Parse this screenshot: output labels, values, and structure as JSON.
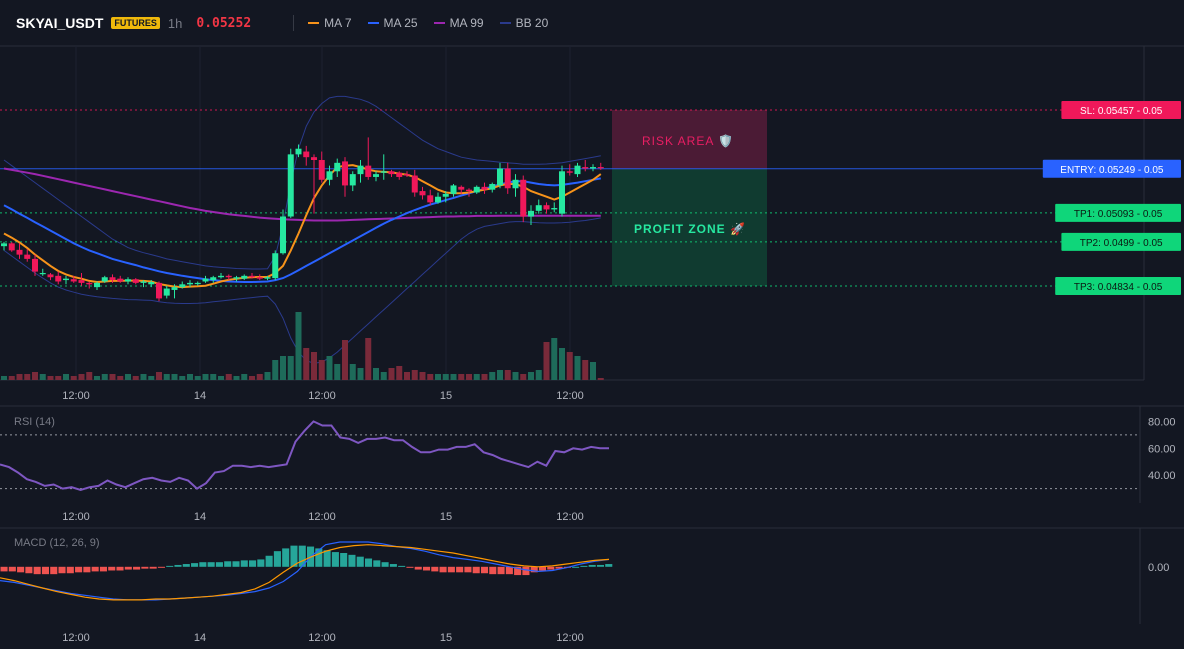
{
  "header": {
    "symbol": "SKYAI_USDT",
    "badge": "FUTURES",
    "timeframe": "1h",
    "last_price": "0.05252",
    "legend": [
      {
        "label": "MA 7",
        "color": "#f7931a"
      },
      {
        "label": "MA 25",
        "color": "#2962ff"
      },
      {
        "label": "MA 99",
        "color": "#9c27b0"
      },
      {
        "label": "BB 20",
        "color": "#2a3a8c"
      }
    ]
  },
  "levels": [
    {
      "label": "SL: 0.05457 - 0.05",
      "price": 0.05457,
      "color": "#f0185a",
      "style": "dotted"
    },
    {
      "label": "ENTRY: 0.05249 - 0.05",
      "price": 0.05249,
      "color": "#2962ff",
      "style": "solid"
    },
    {
      "label": "TP1: 0.05093 - 0.05",
      "price": 0.05093,
      "color": "#0fd67a",
      "style": "dotted"
    },
    {
      "label": "TP2: 0.0499 - 0.05",
      "price": 0.0499,
      "color": "#0fd67a",
      "style": "dotted"
    },
    {
      "label": "TP3: 0.04834 - 0.05",
      "price": 0.04834,
      "color": "#0fd67a",
      "style": "dotted"
    }
  ],
  "zones": {
    "risk_label": "RISK AREA 🛡️",
    "profit_label": "PROFIT ZONE 🚀"
  },
  "x_ticks": [
    "12:00",
    "14",
    "12:00",
    "15",
    "12:00"
  ],
  "colors": {
    "up": "#26e8a0",
    "down": "#f0185a",
    "background": "#131722"
  },
  "chart_data": [
    {
      "type": "candlestick",
      "title": "SKYAI_USDT 1h",
      "candles": [
        [
          0.04975,
          0.0499,
          0.0496,
          0.04985
        ],
        [
          0.04985,
          0.0499,
          0.04955,
          0.0496
        ],
        [
          0.04962,
          0.04985,
          0.0493,
          0.04945
        ],
        [
          0.04945,
          0.04965,
          0.0492,
          0.0493
        ],
        [
          0.0493,
          0.04945,
          0.0487,
          0.04885
        ],
        [
          0.0488,
          0.04895,
          0.0487,
          0.0488
        ],
        [
          0.04875,
          0.0488,
          0.04855,
          0.04865
        ],
        [
          0.0487,
          0.04885,
          0.0484,
          0.0485
        ],
        [
          0.04855,
          0.0487,
          0.0484,
          0.0486
        ],
        [
          0.04858,
          0.0487,
          0.04845,
          0.0485
        ],
        [
          0.04855,
          0.0488,
          0.04835,
          0.04845
        ],
        [
          0.04845,
          0.0485,
          0.04825,
          0.0484
        ],
        [
          0.0483,
          0.0485,
          0.0482,
          0.04845
        ],
        [
          0.0485,
          0.0487,
          0.04845,
          0.04865
        ],
        [
          0.04865,
          0.04875,
          0.04845,
          0.04855
        ],
        [
          0.0486,
          0.0487,
          0.04845,
          0.0485
        ],
        [
          0.0485,
          0.04865,
          0.0484,
          0.04858
        ],
        [
          0.04858,
          0.04862,
          0.0484,
          0.04845
        ],
        [
          0.04845,
          0.04855,
          0.0483,
          0.0485
        ],
        [
          0.0484,
          0.04855,
          0.0483,
          0.04848
        ],
        [
          0.04845,
          0.0485,
          0.0478,
          0.0479
        ],
        [
          0.048,
          0.04835,
          0.0479,
          0.04825
        ],
        [
          0.0482,
          0.0484,
          0.0479,
          0.0483
        ],
        [
          0.0483,
          0.0485,
          0.04825,
          0.0484
        ],
        [
          0.0484,
          0.04855,
          0.0483,
          0.04845
        ],
        [
          0.04845,
          0.0485,
          0.04835,
          0.04845
        ],
        [
          0.0485,
          0.0487,
          0.04845,
          0.0486
        ],
        [
          0.04855,
          0.0487,
          0.04845,
          0.04865
        ],
        [
          0.04865,
          0.0488,
          0.0486,
          0.0487
        ],
        [
          0.0487,
          0.04875,
          0.04855,
          0.04865
        ],
        [
          0.0486,
          0.0487,
          0.0485,
          0.04865
        ],
        [
          0.0486,
          0.04875,
          0.04855,
          0.0487
        ],
        [
          0.0487,
          0.0488,
          0.0486,
          0.04865
        ],
        [
          0.04865,
          0.04875,
          0.04855,
          0.0486
        ],
        [
          0.0486,
          0.0487,
          0.04855,
          0.04865
        ],
        [
          0.04862,
          0.0496,
          0.04855,
          0.0495
        ],
        [
          0.0495,
          0.05105,
          0.04945,
          0.0508
        ],
        [
          0.0508,
          0.0532,
          0.05075,
          0.053
        ],
        [
          0.053,
          0.05335,
          0.0529,
          0.0532
        ],
        [
          0.0531,
          0.0533,
          0.0526,
          0.0529
        ],
        [
          0.0529,
          0.053,
          0.0509,
          0.0528
        ],
        [
          0.0528,
          0.0531,
          0.052,
          0.0521
        ],
        [
          0.0521,
          0.0526,
          0.0519,
          0.0524
        ],
        [
          0.0524,
          0.05285,
          0.0522,
          0.0527
        ],
        [
          0.05275,
          0.0529,
          0.0515,
          0.0519
        ],
        [
          0.0519,
          0.0524,
          0.0517,
          0.0523
        ],
        [
          0.0523,
          0.0528,
          0.052,
          0.0526
        ],
        [
          0.0526,
          0.0536,
          0.0521,
          0.0522
        ],
        [
          0.0522,
          0.0524,
          0.05205,
          0.0523
        ],
        [
          0.05235,
          0.053,
          0.0521,
          0.0524
        ],
        [
          0.0524,
          0.05245,
          0.0522,
          0.0523
        ],
        [
          0.05235,
          0.0524,
          0.0521,
          0.0522
        ],
        [
          0.0523,
          0.0524,
          0.0522,
          0.05225
        ],
        [
          0.05225,
          0.05245,
          0.0515,
          0.05165
        ],
        [
          0.0517,
          0.05185,
          0.0514,
          0.05155
        ],
        [
          0.05155,
          0.05175,
          0.0512,
          0.0513
        ],
        [
          0.0513,
          0.05165,
          0.05125,
          0.0515
        ],
        [
          0.0515,
          0.0517,
          0.0513,
          0.0516
        ],
        [
          0.0516,
          0.05195,
          0.0515,
          0.0519
        ],
        [
          0.05185,
          0.0519,
          0.0516,
          0.05175
        ],
        [
          0.05175,
          0.0518,
          0.0515,
          0.0517
        ],
        [
          0.05165,
          0.0519,
          0.0516,
          0.05185
        ],
        [
          0.05185,
          0.052,
          0.0516,
          0.05175
        ],
        [
          0.05175,
          0.052,
          0.05165,
          0.05195
        ],
        [
          0.0519,
          0.0527,
          0.0518,
          0.0525
        ],
        [
          0.0525,
          0.0527,
          0.0516,
          0.0518
        ],
        [
          0.0518,
          0.0523,
          0.0515,
          0.0521
        ],
        [
          0.0521,
          0.05225,
          0.0506,
          0.0508
        ],
        [
          0.0508,
          0.0512,
          0.0505,
          0.051
        ],
        [
          0.051,
          0.0514,
          0.0509,
          0.0512
        ],
        [
          0.0512,
          0.0513,
          0.0509,
          0.05105
        ],
        [
          0.05105,
          0.0513,
          0.05095,
          0.0511
        ],
        [
          0.0509,
          0.0526,
          0.0508,
          0.0524
        ],
        [
          0.0524,
          0.05265,
          0.05225,
          0.05235
        ],
        [
          0.0523,
          0.0527,
          0.0522,
          0.0526
        ],
        [
          0.05255,
          0.0528,
          0.0524,
          0.0525
        ],
        [
          0.0525,
          0.05265,
          0.0524,
          0.05255
        ],
        [
          0.05255,
          0.0527,
          0.05245,
          0.05252
        ]
      ],
      "ma7": [
        0.0502,
        0.05005,
        0.04988,
        0.04968,
        0.04945,
        0.04925,
        0.04905,
        0.04887,
        0.04875,
        0.04866,
        0.0486,
        0.04852,
        0.04848,
        0.0485,
        0.04852,
        0.04852,
        0.04853,
        0.04853,
        0.04852,
        0.0485,
        0.04841,
        0.04836,
        0.04832,
        0.0483,
        0.04832,
        0.04833,
        0.04835,
        0.04842,
        0.0485,
        0.04856,
        0.0486,
        0.04863,
        0.04865,
        0.04866,
        0.04866,
        0.0488,
        0.04905,
        0.0496,
        0.0502,
        0.05085,
        0.05145,
        0.0519,
        0.05225,
        0.05255,
        0.0526,
        0.05262,
        0.05255,
        0.05246,
        0.0524,
        0.05238,
        0.05236,
        0.05232,
        0.05228,
        0.0522,
        0.05205,
        0.0519,
        0.05175,
        0.05165,
        0.05162,
        0.05162,
        0.05165,
        0.0517,
        0.05175,
        0.0518,
        0.0519,
        0.05195,
        0.05195,
        0.05185,
        0.0517,
        0.0516,
        0.0515,
        0.0514,
        0.0515,
        0.05165,
        0.0518,
        0.05195,
        0.0521,
        0.0523
      ],
      "ma25": [
        0.0512,
        0.05105,
        0.0509,
        0.05075,
        0.0506,
        0.05045,
        0.0503,
        0.05015,
        0.05,
        0.04985,
        0.04972,
        0.0496,
        0.0495,
        0.0494,
        0.0493,
        0.04922,
        0.04915,
        0.04908,
        0.049,
        0.04893,
        0.04886,
        0.0488,
        0.04875,
        0.0487,
        0.04866,
        0.04862,
        0.04858,
        0.04855,
        0.04852,
        0.0485,
        0.04849,
        0.04848,
        0.04848,
        0.04849,
        0.0485,
        0.04855,
        0.04862,
        0.04875,
        0.0489,
        0.04905,
        0.0492,
        0.04935,
        0.0495,
        0.04965,
        0.0498,
        0.04995,
        0.0501,
        0.05025,
        0.0504,
        0.05055,
        0.05068,
        0.0508,
        0.05092,
        0.05103,
        0.05113,
        0.05122,
        0.0513,
        0.05138,
        0.05146,
        0.05154,
        0.05162,
        0.0517,
        0.05178,
        0.05186,
        0.05194,
        0.052,
        0.05205,
        0.05205,
        0.052,
        0.05195,
        0.05192,
        0.0519,
        0.05192,
        0.05196,
        0.052,
        0.05205,
        0.0521,
        0.05215
      ],
      "ma99": [
        0.0525,
        0.05245,
        0.0524,
        0.05235,
        0.0523,
        0.05224,
        0.05218,
        0.05212,
        0.05206,
        0.052,
        0.05194,
        0.05188,
        0.05182,
        0.05176,
        0.0517,
        0.05164,
        0.05158,
        0.05152,
        0.05146,
        0.0514,
        0.05134,
        0.05128,
        0.05122,
        0.05116,
        0.0511,
        0.05105,
        0.051,
        0.05096,
        0.05092,
        0.05088,
        0.05085,
        0.05082,
        0.05079,
        0.05076,
        0.05074,
        0.05072,
        0.0507,
        0.05069,
        0.05068,
        0.05067,
        0.05066,
        0.05066,
        0.05066,
        0.05066,
        0.05067,
        0.05068,
        0.05069,
        0.0507,
        0.05071,
        0.05072,
        0.05073,
        0.05074,
        0.05075,
        0.05076,
        0.05077,
        0.05078,
        0.05079,
        0.0508,
        0.0508,
        0.05081,
        0.05081,
        0.05082,
        0.05082,
        0.05082,
        0.05083,
        0.05083,
        0.05083,
        0.05083,
        0.05083,
        0.05083,
        0.05083,
        0.05083,
        0.05083,
        0.05083,
        0.05083,
        0.05083,
        0.05083,
        0.05083
      ],
      "bb_upper": [
        0.0528,
        0.0526,
        0.0524,
        0.0522,
        0.052,
        0.0518,
        0.0516,
        0.0514,
        0.0512,
        0.051,
        0.0508,
        0.0506,
        0.0504,
        0.0502,
        0.05,
        0.04985,
        0.0497,
        0.0496,
        0.04952,
        0.04945,
        0.04938,
        0.0493,
        0.04925,
        0.0492,
        0.04915,
        0.0491,
        0.04905,
        0.04902,
        0.049,
        0.04898,
        0.04896,
        0.04895,
        0.04894,
        0.04894,
        0.04895,
        0.0494,
        0.0505,
        0.052,
        0.0532,
        0.054,
        0.0545,
        0.0548,
        0.055,
        0.05505,
        0.05505,
        0.055,
        0.05495,
        0.05485,
        0.0547,
        0.0545,
        0.0543,
        0.0541,
        0.0539,
        0.0537,
        0.0535,
        0.05335,
        0.0532,
        0.0531,
        0.053,
        0.0529,
        0.05285,
        0.0528,
        0.05278,
        0.05275,
        0.05272,
        0.0527,
        0.05268,
        0.05265,
        0.05265,
        0.05265,
        0.05266,
        0.05268,
        0.0527,
        0.05275,
        0.0528,
        0.05285,
        0.0529,
        0.05295
      ],
      "bb_lower": [
        0.0496,
        0.0494,
        0.0492,
        0.049,
        0.0488,
        0.04862,
        0.04845,
        0.0483,
        0.0482,
        0.04812,
        0.04805,
        0.048,
        0.04796,
        0.04793,
        0.0479,
        0.04788,
        0.04786,
        0.04785,
        0.04784,
        0.04783,
        0.04778,
        0.04775,
        0.04773,
        0.04772,
        0.04772,
        0.04773,
        0.04775,
        0.04778,
        0.04781,
        0.04784,
        0.04787,
        0.0479,
        0.04793,
        0.04796,
        0.04798,
        0.0477,
        0.0472,
        0.0465,
        0.046,
        0.0457,
        0.0456,
        0.04565,
        0.0458,
        0.046,
        0.04625,
        0.0465,
        0.04675,
        0.047,
        0.04725,
        0.0475,
        0.04775,
        0.048,
        0.04825,
        0.0485,
        0.04875,
        0.049,
        0.04925,
        0.0495,
        0.04975,
        0.05,
        0.0502,
        0.05035,
        0.05045,
        0.0505,
        0.05055,
        0.0506,
        0.05062,
        0.05062,
        0.0506,
        0.05058,
        0.05057,
        0.05057,
        0.05058,
        0.0506,
        0.05063,
        0.05066,
        0.0507,
        0.05075
      ],
      "volume": [
        2,
        2,
        3,
        3,
        4,
        3,
        2,
        2,
        3,
        2,
        3,
        4,
        2,
        3,
        3,
        2,
        3,
        2,
        3,
        2,
        4,
        3,
        3,
        2,
        3,
        2,
        3,
        3,
        2,
        3,
        2,
        3,
        2,
        3,
        4,
        10,
        12,
        12,
        34,
        16,
        14,
        10,
        12,
        8,
        20,
        8,
        6,
        21,
        6,
        4,
        6,
        7,
        4,
        5,
        4,
        3,
        3,
        3,
        3,
        3,
        3,
        3,
        3,
        4,
        5,
        5,
        4,
        3,
        4,
        5,
        19,
        21,
        16,
        14,
        12,
        10,
        9,
        1
      ]
    },
    {
      "type": "line",
      "title": "RSI (14)",
      "y_ticks": [
        80,
        60,
        40
      ],
      "ylim": [
        20,
        90
      ],
      "guides": [
        70,
        30
      ],
      "values": [
        48,
        46,
        42,
        37,
        35,
        32,
        33,
        30,
        31,
        29,
        31,
        32,
        36,
        33,
        31,
        34,
        37,
        38,
        36,
        35,
        38,
        36,
        30,
        34,
        42,
        43,
        47,
        47,
        46,
        47,
        46,
        47,
        48,
        65,
        73,
        80,
        77,
        77,
        68,
        67,
        64,
        67,
        67,
        68,
        66,
        66,
        61,
        57,
        57,
        59,
        59,
        61,
        61,
        63,
        57,
        55,
        52,
        50,
        48,
        46,
        50,
        47,
        58,
        57,
        60,
        59,
        61,
        60,
        60
      ]
    },
    {
      "type": "bar",
      "title": "MACD (12, 26, 9)",
      "y_ticks": [
        0.0
      ],
      "ylim": [
        -6,
        4
      ],
      "histogram": [
        -0.5,
        -0.5,
        -0.6,
        -0.7,
        -0.8,
        -0.8,
        -0.8,
        -0.7,
        -0.7,
        -0.6,
        -0.6,
        -0.5,
        -0.5,
        -0.4,
        -0.4,
        -0.3,
        -0.3,
        -0.2,
        -0.2,
        -0.1,
        0.1,
        0.2,
        0.3,
        0.4,
        0.5,
        0.5,
        0.5,
        0.6,
        0.6,
        0.7,
        0.7,
        0.8,
        1.2,
        1.7,
        2.0,
        2.3,
        2.3,
        2.2,
        2.0,
        1.8,
        1.6,
        1.5,
        1.3,
        1.1,
        0.9,
        0.7,
        0.5,
        0.3,
        0.1,
        -0.1,
        -0.3,
        -0.4,
        -0.5,
        -0.6,
        -0.6,
        -0.6,
        -0.6,
        -0.7,
        -0.7,
        -0.8,
        -0.8,
        -0.8,
        -0.9,
        -0.9,
        -0.6,
        -0.4,
        -0.3,
        -0.2,
        -0.1,
        0.0,
        0.1,
        0.2,
        0.2,
        0.3
      ],
      "macd": [
        -1.5,
        -1.7,
        -2.0,
        -2.3,
        -2.6,
        -2.9,
        -3.1,
        -3.3,
        -3.5,
        -3.6,
        -3.6,
        -3.6,
        -3.5,
        -3.4,
        -3.3,
        -3.2,
        -3.1,
        -2.9,
        -2.7,
        -2.3,
        -1.6,
        -0.5,
        1.2,
        2.4,
        2.7,
        2.7,
        2.7,
        2.5,
        2.2,
        2.0,
        1.7,
        1.3,
        1.0,
        0.8,
        0.6,
        0.3,
        0.0,
        -0.3,
        -0.5,
        -0.4,
        -0.1,
        0.3,
        0.6,
        0.8
      ],
      "signal": [
        -1.2,
        -1.5,
        -1.9,
        -2.3,
        -2.7,
        -3.0,
        -3.3,
        -3.5,
        -3.6,
        -3.6,
        -3.6,
        -3.5,
        -3.5,
        -3.4,
        -3.3,
        -3.2,
        -3.0,
        -2.8,
        -2.4,
        -1.7,
        -0.6,
        0.4,
        1.1,
        1.7,
        2.1,
        2.3,
        2.4,
        2.3,
        2.2,
        2.1,
        1.9,
        1.7,
        1.5,
        1.2,
        0.9,
        0.6,
        0.3,
        0.1,
        0.0,
        0.1,
        0.3,
        0.5,
        0.7,
        0.8
      ]
    }
  ]
}
